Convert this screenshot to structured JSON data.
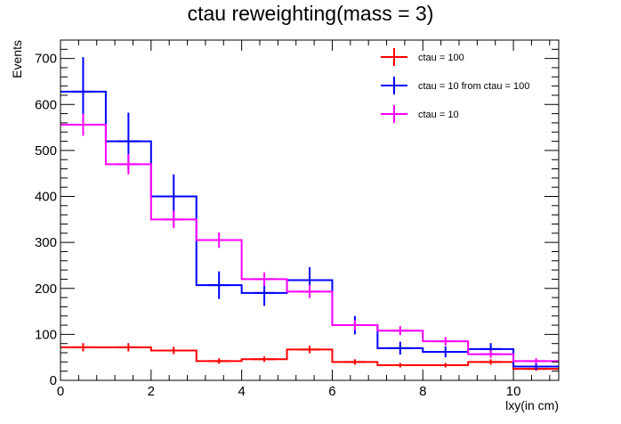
{
  "chart_data": {
    "type": "histogram",
    "title": "ctau reweighting(mass = 3)",
    "xlabel": "lxy(in cm)",
    "ylabel": "Events",
    "xlim": [
      0,
      11
    ],
    "ylim": [
      0,
      740
    ],
    "x_ticks": [
      0,
      2,
      4,
      6,
      8,
      10
    ],
    "y_ticks": [
      0,
      100,
      200,
      300,
      400,
      500,
      600,
      700
    ],
    "bin_edges": [
      0,
      1,
      2,
      3,
      4,
      5,
      6,
      7,
      8,
      9,
      10,
      11
    ],
    "grid": false,
    "legend_position": "top-right",
    "series": [
      {
        "name": "ctau = 100",
        "color": "#ff0000",
        "values": [
          72,
          72,
          65,
          42,
          46,
          67,
          40,
          33,
          33,
          40,
          25
        ],
        "errors": [
          9,
          9,
          8,
          6,
          6,
          8,
          6,
          5,
          5,
          6,
          4
        ]
      },
      {
        "name": "ctau = 10 from ctau = 100",
        "color": "#0000ff",
        "values": [
          628,
          520,
          400,
          207,
          190,
          218,
          120,
          70,
          62,
          68,
          30
        ],
        "errors": [
          75,
          62,
          48,
          30,
          28,
          28,
          20,
          14,
          12,
          13,
          7
        ]
      },
      {
        "name": "ctau = 10",
        "color": "#ff00ff",
        "values": [
          556,
          470,
          350,
          305,
          220,
          193,
          120,
          108,
          85,
          57,
          42
        ],
        "errors": [
          24,
          22,
          19,
          17,
          15,
          14,
          11,
          10,
          9,
          8,
          6
        ]
      }
    ]
  }
}
